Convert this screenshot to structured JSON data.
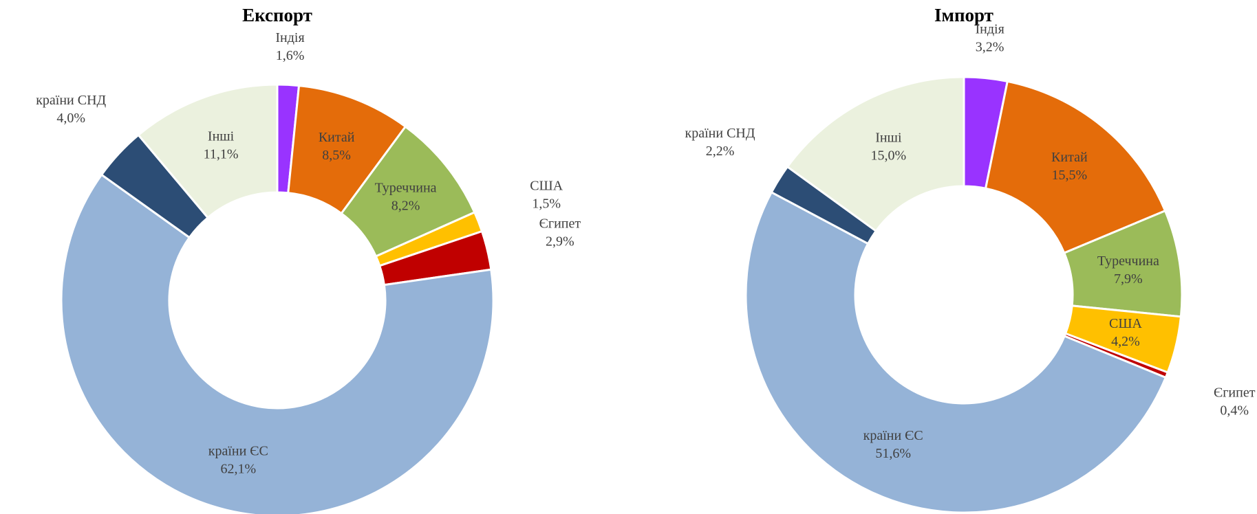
{
  "chart_data": [
    {
      "type": "pie",
      "title": "Експорт",
      "categories": [
        "Індія",
        "Китай",
        "Туреччина",
        "США",
        "Єгипет",
        "країни ЄС",
        "країни СНД",
        "Інші"
      ],
      "values": [
        1.6,
        8.5,
        8.2,
        1.5,
        2.9,
        62.1,
        4.0,
        11.1
      ],
      "value_labels": [
        "1,6%",
        "8,5%",
        "8,2%",
        "1,5%",
        "2,9%",
        "62,1%",
        "4,0%",
        "11,1%"
      ],
      "colors": [
        "#9933ff",
        "#e46c0a",
        "#9bbb59",
        "#ffc000",
        "#c00000",
        "#95b3d7",
        "#2c4d75",
        "#ebf1de"
      ]
    },
    {
      "type": "pie",
      "title": "Імпорт",
      "categories": [
        "Індія",
        "Китай",
        "Туреччина",
        "США",
        "Єгипет",
        "країни ЄС",
        "країни СНД",
        "Інші"
      ],
      "values": [
        3.2,
        15.5,
        7.9,
        4.2,
        0.4,
        51.6,
        2.2,
        15.0
      ],
      "value_labels": [
        "3,2%",
        "15,5%",
        "7,9%",
        "4,2%",
        "0,4%",
        "51,6%",
        "2,2%",
        "15,0%"
      ],
      "colors": [
        "#9933ff",
        "#e46c0a",
        "#9bbb59",
        "#ffc000",
        "#c00000",
        "#95b3d7",
        "#2c4d75",
        "#ebf1de"
      ]
    }
  ]
}
